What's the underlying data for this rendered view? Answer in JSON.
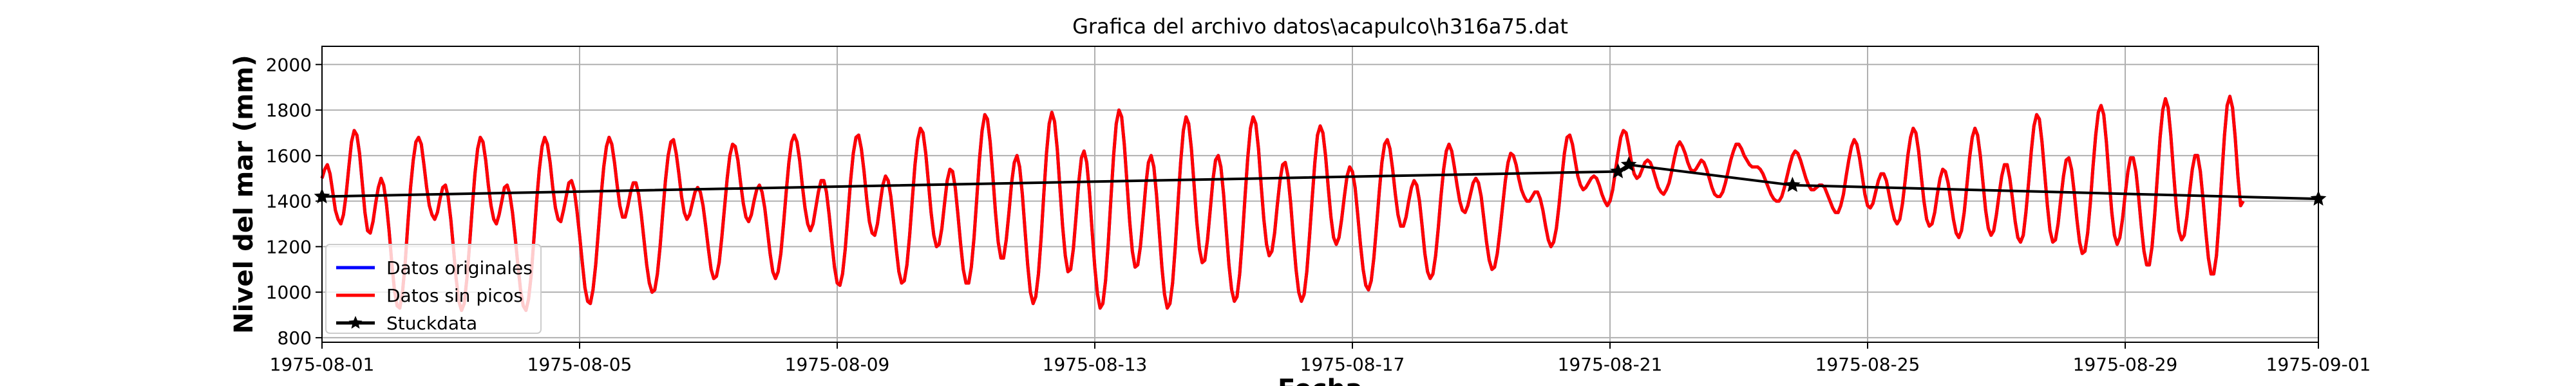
{
  "chart_data": {
    "type": "line",
    "title": "Grafica del archivo datos\\acapulco\\h316a75.dat",
    "xlabel": "Fecha",
    "ylabel": "Nivel del mar (mm)",
    "xlim": [
      "1975-08-01",
      "1975-09-01"
    ],
    "ylim": [
      780,
      2080
    ],
    "grid": true,
    "legend_placement": "lower-left",
    "x_ticks": [
      "1975-08-01",
      "1975-08-05",
      "1975-08-09",
      "1975-08-13",
      "1975-08-17",
      "1975-08-21",
      "1975-08-25",
      "1975-08-29",
      "1975-09-01"
    ],
    "y_ticks": [
      800,
      1000,
      1200,
      1400,
      1600,
      1800,
      2000
    ],
    "series": [
      {
        "name": "Datos originales",
        "color": "#0000ff",
        "style": "line",
        "x_start": "1975-08-01T00:00",
        "step_hours": 1,
        "y": [
          1500,
          1540,
          1560,
          1520,
          1440,
          1360,
          1320,
          1300,
          1340,
          1430,
          1550,
          1660,
          1710,
          1690,
          1610,
          1480,
          1350,
          1270,
          1260,
          1310,
          1390,
          1460,
          1500,
          1470,
          1390,
          1270,
          1130,
          1010,
          940,
          930,
          1000,
          1130,
          1300,
          1460,
          1580,
          1660,
          1680,
          1650,
          1560,
          1460,
          1380,
          1340,
          1320,
          1350,
          1410,
          1460,
          1470,
          1420,
          1320,
          1190,
          1060,
          960,
          920,
          950,
          1060,
          1210,
          1370,
          1520,
          1630,
          1680,
          1660,
          1580,
          1470,
          1380,
          1320,
          1300,
          1340,
          1400,
          1460,
          1470,
          1430,
          1350,
          1240,
          1120,
          1010,
          940,
          920,
          970,
          1080,
          1240,
          1400,
          1540,
          1640,
          1680,
          1650,
          1570,
          1460,
          1370,
          1320,
          1310,
          1360,
          1420,
          1480,
          1490,
          1450,
          1360,
          1250,
          1130,
          1020,
          960,
          950,
          1010,
          1120,
          1270,
          1420,
          1550,
          1640,
          1680,
          1650,
          1570,
          1470,
          1380,
          1330,
          1330,
          1380,
          1440,
          1480,
          1480,
          1430,
          1340,
          1230,
          1120,
          1040,
          1000,
          1010,
          1080,
          1200,
          1350,
          1490,
          1600,
          1660,
          1670,
          1610,
          1520,
          1420,
          1350,
          1320,
          1340,
          1390,
          1440,
          1460,
          1440,
          1380,
          1290,
          1190,
          1100,
          1060,
          1070,
          1130,
          1240,
          1370,
          1500,
          1600,
          1650,
          1640,
          1580,
          1480,
          1390,
          1330,
          1310,
          1340,
          1400,
          1450,
          1470,
          1440,
          1370,
          1270,
          1170,
          1090,
          1060,
          1090,
          1170,
          1300,
          1440,
          1570,
          1660,
          1690,
          1660,
          1580,
          1470,
          1370,
          1300,
          1270,
          1300,
          1370,
          1440,
          1490,
          1490,
          1440,
          1340,
          1220,
          1110,
          1040,
          1030,
          1080,
          1190,
          1340,
          1490,
          1610,
          1680,
          1690,
          1630,
          1530,
          1410,
          1310,
          1260,
          1250,
          1300,
          1390,
          1470,
          1510,
          1490,
          1420,
          1310,
          1190,
          1090,
          1040,
          1050,
          1120,
          1250,
          1410,
          1560,
          1670,
          1720,
          1700,
          1610,
          1480,
          1350,
          1250,
          1200,
          1210,
          1280,
          1390,
          1490,
          1540,
          1530,
          1460,
          1340,
          1210,
          1100,
          1040,
          1040,
          1110,
          1240,
          1410,
          1580,
          1710,
          1780,
          1760,
          1660,
          1510,
          1350,
          1220,
          1150,
          1150,
          1230,
          1350,
          1480,
          1570,
          1600,
          1550,
          1430,
          1270,
          1120,
          1000,
          950,
          980,
          1080,
          1240,
          1430,
          1610,
          1740,
          1790,
          1750,
          1630,
          1460,
          1290,
          1160,
          1090,
          1100,
          1190,
          1330,
          1480,
          1590,
          1620,
          1570,
          1440,
          1270,
          1110,
          990,
          930,
          950,
          1050,
          1210,
          1410,
          1600,
          1740,
          1800,
          1770,
          1650,
          1480,
          1310,
          1180,
          1110,
          1120,
          1200,
          1330,
          1470,
          1570,
          1600,
          1550,
          1430,
          1270,
          1110,
          990,
          930,
          950,
          1040,
          1200,
          1390,
          1570,
          1710,
          1770,
          1740,
          1630,
          1470,
          1310,
          1190,
          1130,
          1140,
          1230,
          1360,
          1490,
          1580,
          1600,
          1550,
          1430,
          1270,
          1120,
          1010,
          960,
          980,
          1080,
          1240,
          1420,
          1590,
          1720,
          1770,
          1740,
          1630,
          1470,
          1320,
          1210,
          1160,
          1180,
          1260,
          1380,
          1490,
          1560,
          1570,
          1510,
          1390,
          1240,
          1100,
          1000,
          960,
          990,
          1090,
          1240,
          1410,
          1570,
          1690,
          1730,
          1700,
          1600,
          1460,
          1330,
          1240,
          1210,
          1240,
          1320,
          1420,
          1510,
          1550,
          1530,
          1460,
          1340,
          1210,
          1100,
          1030,
          1010,
          1050,
          1150,
          1290,
          1440,
          1570,
          1650,
          1670,
          1630,
          1540,
          1430,
          1340,
          1290,
          1290,
          1330,
          1400,
          1460,
          1490,
          1470,
          1400,
          1290,
          1170,
          1090,
          1060,
          1080,
          1160,
          1280,
          1420,
          1540,
          1620,
          1650,
          1620,
          1550,
          1470,
          1400,
          1360,
          1350,
          1380,
          1430,
          1480,
          1500,
          1480,
          1420,
          1320,
          1220,
          1140,
          1100,
          1110,
          1170,
          1270,
          1380,
          1490,
          1570,
          1610,
          1600,
          1560,
          1500,
          1450,
          1420,
          1400,
          1400,
          1420,
          1440,
          1440,
          1410,
          1360,
          1290,
          1230,
          1200,
          1220,
          1280,
          1380,
          1500,
          1610,
          1680,
          1690,
          1650,
          1580,
          1510,
          1470,
          1450,
          1460,
          1480,
          1500,
          1510,
          1500,
          1470,
          1430,
          1400,
          1380,
          1400,
          1450,
          1530,
          1610,
          1680,
          1710,
          1700,
          1640,
          1570,
          1520,
          1500,
          1510,
          1540,
          1570,
          1580,
          1570,
          1540,
          1500,
          1460,
          1440,
          1430,
          1450,
          1480,
          1530,
          1590,
          1640,
          1660,
          1640,
          1610,
          1570,
          1540,
          1530,
          1540,
          1560,
          1580,
          1570,
          1540,
          1500,
          1460,
          1430,
          1420,
          1420,
          1440,
          1480,
          1530,
          1580,
          1620,
          1650,
          1650,
          1630,
          1600,
          1580,
          1560,
          1550,
          1550,
          1550,
          1540,
          1520,
          1490,
          1460,
          1430,
          1410,
          1400,
          1400,
          1420,
          1460,
          1510,
          1560,
          1600,
          1620,
          1610,
          1580,
          1540,
          1500,
          1470,
          1450,
          1450,
          1460,
          1470,
          1470,
          1460,
          1430,
          1400,
          1370,
          1350,
          1350,
          1380,
          1430,
          1510,
          1580,
          1640,
          1670,
          1650,
          1590,
          1510,
          1430,
          1380,
          1370,
          1390,
          1440,
          1490,
          1520,
          1520,
          1490,
          1430,
          1370,
          1320,
          1300,
          1320,
          1390,
          1490,
          1600,
          1680,
          1720,
          1700,
          1620,
          1510,
          1400,
          1320,
          1290,
          1300,
          1350,
          1430,
          1500,
          1540,
          1530,
          1480,
          1400,
          1320,
          1260,
          1240,
          1270,
          1350,
          1470,
          1590,
          1680,
          1720,
          1690,
          1600,
          1480,
          1360,
          1280,
          1250,
          1270,
          1340,
          1430,
          1510,
          1560,
          1560,
          1500,
          1410,
          1310,
          1240,
          1220,
          1250,
          1350,
          1480,
          1620,
          1730,
          1780,
          1760,
          1660,
          1520,
          1380,
          1270,
          1220,
          1230,
          1300,
          1410,
          1510,
          1580,
          1590,
          1540,
          1440,
          1320,
          1220,
          1170,
          1180,
          1260,
          1390,
          1550,
          1690,
          1790,
          1820,
          1780,
          1660,
          1500,
          1350,
          1250,
          1210,
          1240,
          1320,
          1430,
          1530,
          1590,
          1590,
          1530,
          1420,
          1290,
          1180,
          1120,
          1120,
          1200,
          1340,
          1510,
          1680,
          1800,
          1850,
          1810,
          1690,
          1530,
          1380,
          1270,
          1230,
          1250,
          1330,
          1440,
          1540,
          1600,
          1600,
          1530,
          1410,
          1270,
          1150,
          1080,
          1080,
          1160,
          1320,
          1510,
          1690,
          1820,
          1860,
          1810,
          1680,
          1510,
          1380,
          1400
        ]
      },
      {
        "name": "Datos sin picos",
        "color": "#ff0000",
        "style": "line",
        "same_as": "Datos originales"
      },
      {
        "name": "Stuckdata",
        "color": "#000000",
        "style": "line-star",
        "points": [
          {
            "x": "1975-08-01T00:00",
            "y": 1420
          },
          {
            "x": "1975-08-21T03:00",
            "y": 1530
          },
          {
            "x": "1975-08-21T07:00",
            "y": 1560
          },
          {
            "x": "1975-08-23T20:00",
            "y": 1470
          },
          {
            "x": "1975-09-01T00:00",
            "y": 1410
          }
        ]
      }
    ]
  }
}
